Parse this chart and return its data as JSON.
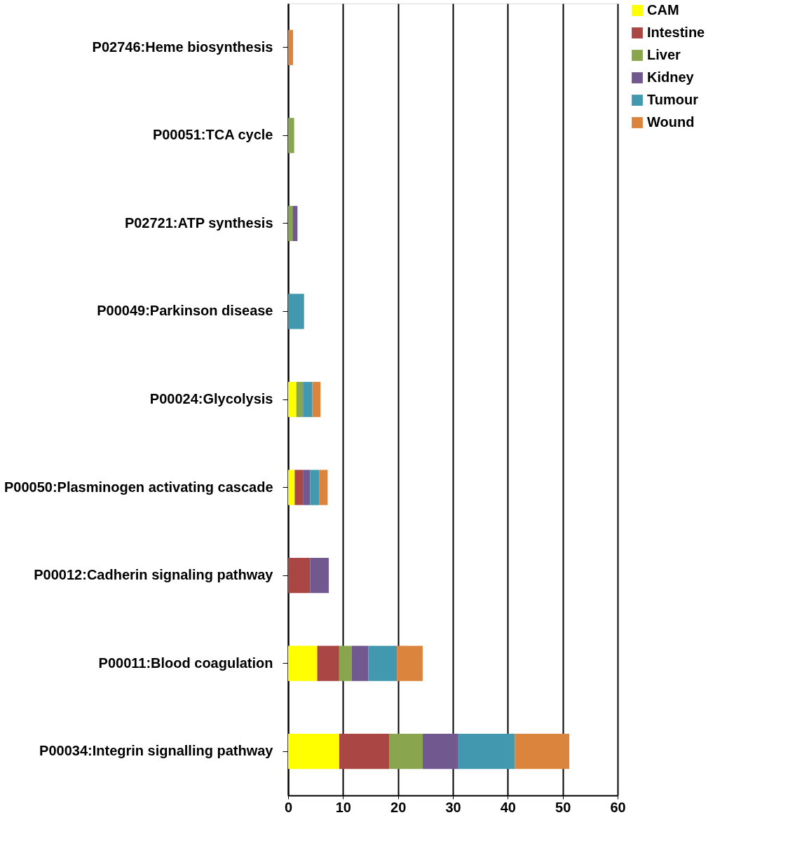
{
  "chart_data": {
    "type": "bar",
    "orientation": "horizontal",
    "stacked": true,
    "categories": [
      "P02746:Heme biosynthesis",
      "P00051:TCA cycle",
      "P02721:ATP synthesis",
      "P00049:Parkinson disease",
      "P00024:Glycolysis",
      "P00050:Plasminogen activating cascade",
      "P00012:Cadherin signaling pathway",
      "P00011:Blood coagulation",
      "P00034:Integrin signalling pathway"
    ],
    "series": [
      {
        "name": "CAM",
        "color": "#ffff00",
        "values": [
          null,
          null,
          null,
          null,
          1.5,
          1.2,
          null,
          5.3,
          9.3
        ]
      },
      {
        "name": "Intestine",
        "color": "#aa4744",
        "values": [
          null,
          null,
          null,
          null,
          null,
          1.5,
          4.0,
          4.0,
          9.1
        ]
      },
      {
        "name": "Liver",
        "color": "#89a54e",
        "values": [
          null,
          1.1,
          0.8,
          null,
          1.2,
          null,
          null,
          2.3,
          6.1
        ]
      },
      {
        "name": "Kidney",
        "color": "#71588f",
        "values": [
          null,
          null,
          0.9,
          null,
          null,
          1.3,
          3.4,
          3.0,
          6.5
        ]
      },
      {
        "name": "Tumour",
        "color": "#4198af",
        "values": [
          null,
          null,
          null,
          2.9,
          1.7,
          1.7,
          null,
          5.2,
          10.3
        ]
      },
      {
        "name": "Wound",
        "color": "#db843d",
        "values": [
          0.9,
          null,
          null,
          null,
          1.5,
          1.5,
          null,
          4.7,
          9.9
        ]
      }
    ],
    "xlim": [
      0,
      60
    ],
    "xticks": [
      0,
      10,
      20,
      30,
      40,
      50,
      60
    ],
    "grid": "x",
    "legend": "right"
  }
}
